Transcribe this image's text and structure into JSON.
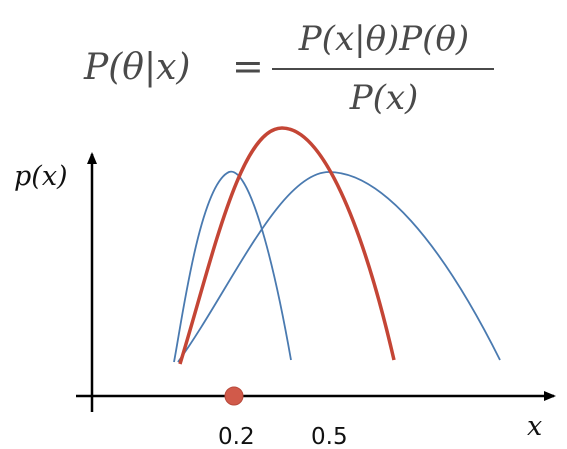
{
  "formula": {
    "lhs": "P(θ|x)",
    "equals": "=",
    "numerator": "P(x|θ)P(θ)",
    "denominator": "P(x)"
  },
  "axes": {
    "y_label": "p(x)",
    "x_label": "x"
  },
  "ticks": {
    "marked_point": "0.2",
    "second": "0.5"
  },
  "colors": {
    "thin_curves": "#4a7ab0",
    "posterior_curve": "#c44535",
    "marker": "#d15a4a",
    "axis": "#000000",
    "formula_text": "#4a4a4a"
  },
  "icons": {
    "marker": "filled-circle-icon"
  }
}
